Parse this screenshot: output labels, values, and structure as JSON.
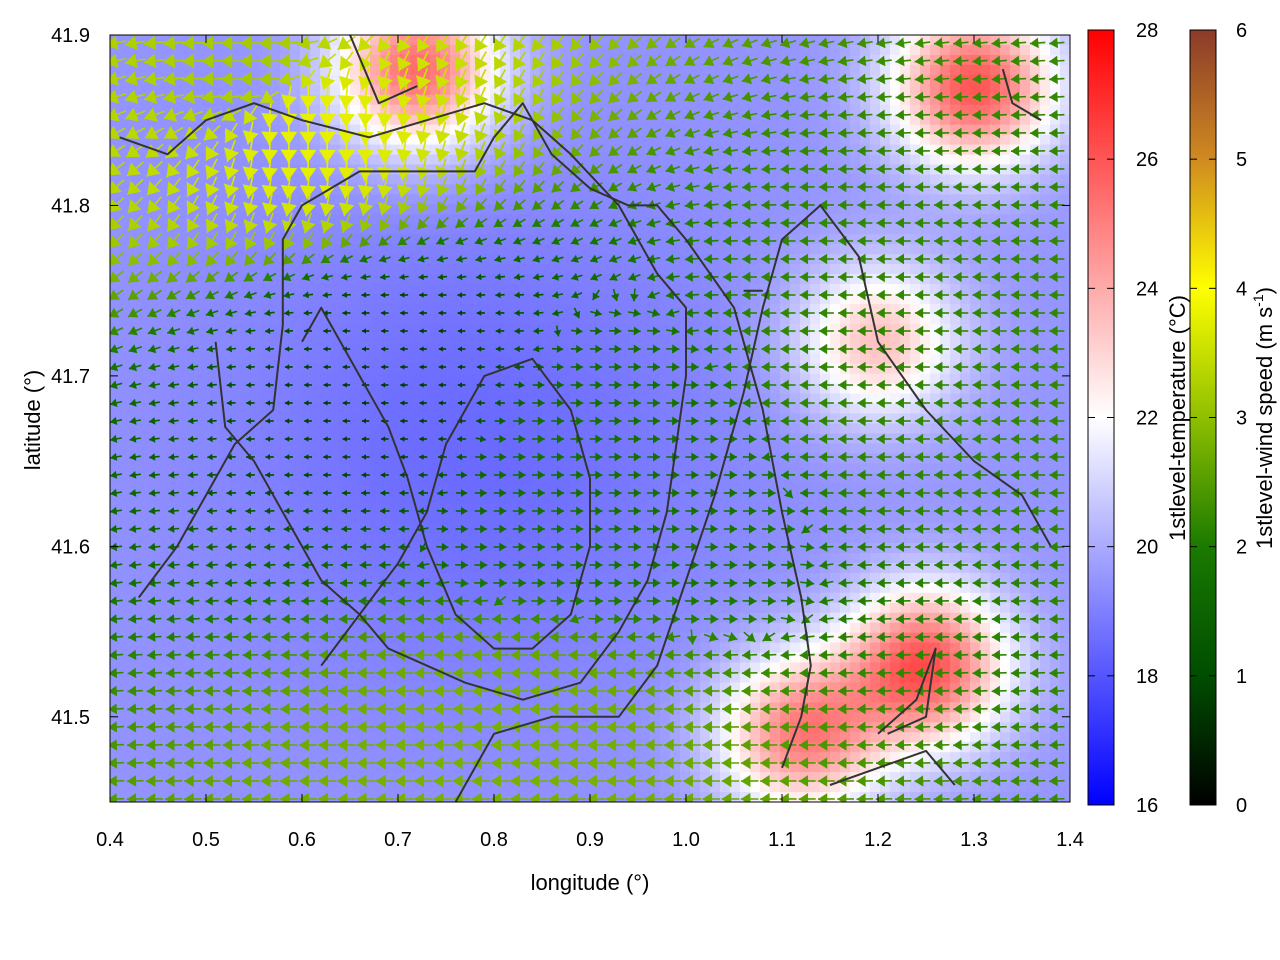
{
  "chart_data": {
    "type": "heatmap",
    "title": "",
    "xlabel": "longitude (°)",
    "ylabel": "latitude (°)",
    "xlim": [
      0.4,
      1.4
    ],
    "ylim": [
      41.45,
      41.9
    ],
    "x_ticks": [
      0.4,
      0.5,
      0.6,
      0.7,
      0.8,
      0.9,
      1.0,
      1.1,
      1.2,
      1.3,
      1.4
    ],
    "x_tick_labels": [
      "0.4",
      "0.5",
      "0.6",
      "0.7",
      "0.8",
      "0.9",
      "1.0",
      "1.1",
      "1.2",
      "1.3",
      "1.4"
    ],
    "y_ticks": [
      41.5,
      41.6,
      41.7,
      41.8,
      41.9
    ],
    "y_tick_labels": [
      "41.5",
      "41.6",
      "41.7",
      "41.8",
      "41.9"
    ],
    "grid": false,
    "temperature_colorbar": {
      "label": "1stlevel-temperature (°C)",
      "range": [
        16,
        28
      ],
      "ticks": [
        16,
        18,
        20,
        22,
        24,
        26,
        28
      ],
      "tick_labels": [
        "16",
        "18",
        "20",
        "22",
        "24",
        "26",
        "28"
      ],
      "colors": [
        "#0000ff",
        "#ffffff",
        "#ff0000"
      ]
    },
    "wind_colorbar": {
      "label_main": "1stlevel-wind speed (m s",
      "label_sup": "-1",
      "label_end": ")",
      "range": [
        0,
        6
      ],
      "ticks": [
        0,
        1,
        2,
        3,
        4,
        5,
        6
      ],
      "tick_labels": [
        "0",
        "1",
        "2",
        "3",
        "4",
        "5",
        "6"
      ],
      "colors": [
        "#000000",
        "#004d00",
        "#1a7a00",
        "#8fbf00",
        "#ffff00",
        "#d08a20",
        "#8b3a2a"
      ]
    },
    "temperature_field": {
      "note_units": "°C",
      "cool_core": {
        "lon": 0.78,
        "lat": 41.66,
        "value": 18.5
      },
      "warm_regions": [
        {
          "lon": 0.72,
          "lat": 41.88,
          "value": 25.5
        },
        {
          "lon": 1.3,
          "lat": 41.87,
          "value": 26
        },
        {
          "lon": 1.25,
          "lat": 41.53,
          "value": 26
        },
        {
          "lon": 1.2,
          "lat": 41.72,
          "value": 23.5
        },
        {
          "lon": 1.12,
          "lat": 41.49,
          "value": 25
        }
      ],
      "background_value": 19.5
    },
    "wind_field": {
      "units": "m s-1",
      "samples": [
        {
          "lon": 0.55,
          "lat": 41.88,
          "speed": 3.2,
          "direction": "west"
        },
        {
          "lon": 0.6,
          "lat": 41.85,
          "speed": 3.8,
          "direction": "south"
        },
        {
          "lon": 0.8,
          "lat": 41.47,
          "speed": 2.8,
          "direction": "west"
        },
        {
          "lon": 1.2,
          "lat": 41.72,
          "speed": 2.2,
          "direction": "west"
        },
        {
          "lon": 0.9,
          "lat": 41.65,
          "speed": 1.8,
          "direction": "east"
        },
        {
          "lon": 0.7,
          "lat": 41.7,
          "speed": 0.8,
          "direction": "west"
        }
      ]
    },
    "contours": [
      [
        [
          0.43,
          41.57
        ],
        [
          0.47,
          41.6
        ],
        [
          0.5,
          41.63
        ],
        [
          0.53,
          41.66
        ],
        [
          0.57,
          41.68
        ],
        [
          0.58,
          41.73
        ],
        [
          0.58,
          41.78
        ],
        [
          0.6,
          41.8
        ],
        [
          0.66,
          41.82
        ],
        [
          0.72,
          41.82
        ],
        [
          0.78,
          41.82
        ],
        [
          0.8,
          41.84
        ],
        [
          0.83,
          41.86
        ],
        [
          0.86,
          41.83
        ],
        [
          0.9,
          41.81
        ],
        [
          0.94,
          41.8
        ],
        [
          0.97,
          41.8
        ],
        [
          1.0,
          41.78
        ],
        [
          1.05,
          41.74
        ],
        [
          1.08,
          41.68
        ],
        [
          1.1,
          41.62
        ],
        [
          1.12,
          41.57
        ],
        [
          1.13,
          41.53
        ],
        [
          1.12,
          41.5
        ],
        [
          1.1,
          41.47
        ]
      ],
      [
        [
          0.51,
          41.72
        ],
        [
          0.52,
          41.67
        ],
        [
          0.55,
          41.65
        ],
        [
          0.58,
          41.62
        ],
        [
          0.62,
          41.58
        ],
        [
          0.66,
          41.56
        ],
        [
          0.69,
          41.54
        ],
        [
          0.73,
          41.53
        ],
        [
          0.77,
          41.52
        ],
        [
          0.83,
          41.51
        ],
        [
          0.89,
          41.52
        ],
        [
          0.93,
          41.55
        ],
        [
          0.96,
          41.58
        ],
        [
          0.98,
          41.62
        ],
        [
          0.99,
          41.66
        ],
        [
          1.0,
          41.7
        ],
        [
          1.0,
          41.74
        ],
        [
          0.97,
          41.76
        ],
        [
          0.95,
          41.78
        ],
        [
          0.93,
          41.8
        ],
        [
          0.88,
          41.83
        ],
        [
          0.84,
          41.85
        ],
        [
          0.79,
          41.86
        ],
        [
          0.73,
          41.85
        ],
        [
          0.67,
          41.84
        ],
        [
          0.6,
          41.85
        ],
        [
          0.55,
          41.86
        ],
        [
          0.5,
          41.85
        ],
        [
          0.46,
          41.83
        ],
        [
          0.41,
          41.84
        ]
      ],
      [
        [
          0.62,
          41.53
        ],
        [
          0.66,
          41.56
        ],
        [
          0.7,
          41.59
        ],
        [
          0.73,
          41.62
        ],
        [
          0.75,
          41.66
        ],
        [
          0.79,
          41.7
        ],
        [
          0.84,
          41.71
        ],
        [
          0.88,
          41.68
        ],
        [
          0.9,
          41.64
        ],
        [
          0.9,
          41.6
        ],
        [
          0.88,
          41.56
        ],
        [
          0.84,
          41.54
        ],
        [
          0.8,
          41.54
        ],
        [
          0.76,
          41.56
        ],
        [
          0.73,
          41.6
        ],
        [
          0.71,
          41.64
        ],
        [
          0.69,
          41.67
        ],
        [
          0.66,
          41.7
        ],
        [
          0.62,
          41.74
        ],
        [
          0.6,
          41.72
        ]
      ],
      [
        [
          0.76,
          41.45
        ],
        [
          0.8,
          41.49
        ],
        [
          0.86,
          41.5
        ],
        [
          0.93,
          41.5
        ],
        [
          0.97,
          41.53
        ],
        [
          1.0,
          41.58
        ],
        [
          1.03,
          41.63
        ],
        [
          1.06,
          41.69
        ],
        [
          1.08,
          41.74
        ],
        [
          1.1,
          41.78
        ],
        [
          1.14,
          41.8
        ],
        [
          1.18,
          41.77
        ],
        [
          1.2,
          41.72
        ],
        [
          1.25,
          41.68
        ],
        [
          1.3,
          41.65
        ],
        [
          1.35,
          41.63
        ],
        [
          1.38,
          41.6
        ]
      ],
      [
        [
          1.2,
          41.49
        ],
        [
          1.24,
          41.51
        ],
        [
          1.26,
          41.54
        ],
        [
          1.25,
          41.5
        ],
        [
          1.21,
          41.49
        ]
      ],
      [
        [
          1.15,
          41.46
        ],
        [
          1.2,
          41.47
        ],
        [
          1.25,
          41.48
        ],
        [
          1.28,
          41.46
        ]
      ],
      [
        [
          0.65,
          41.9
        ],
        [
          0.68,
          41.86
        ],
        [
          0.72,
          41.87
        ]
      ],
      [
        [
          1.33,
          41.88
        ],
        [
          1.34,
          41.86
        ],
        [
          1.37,
          41.85
        ]
      ],
      [
        [
          1.06,
          41.75
        ],
        [
          1.07,
          41.75
        ],
        [
          1.08,
          41.75
        ]
      ]
    ]
  }
}
